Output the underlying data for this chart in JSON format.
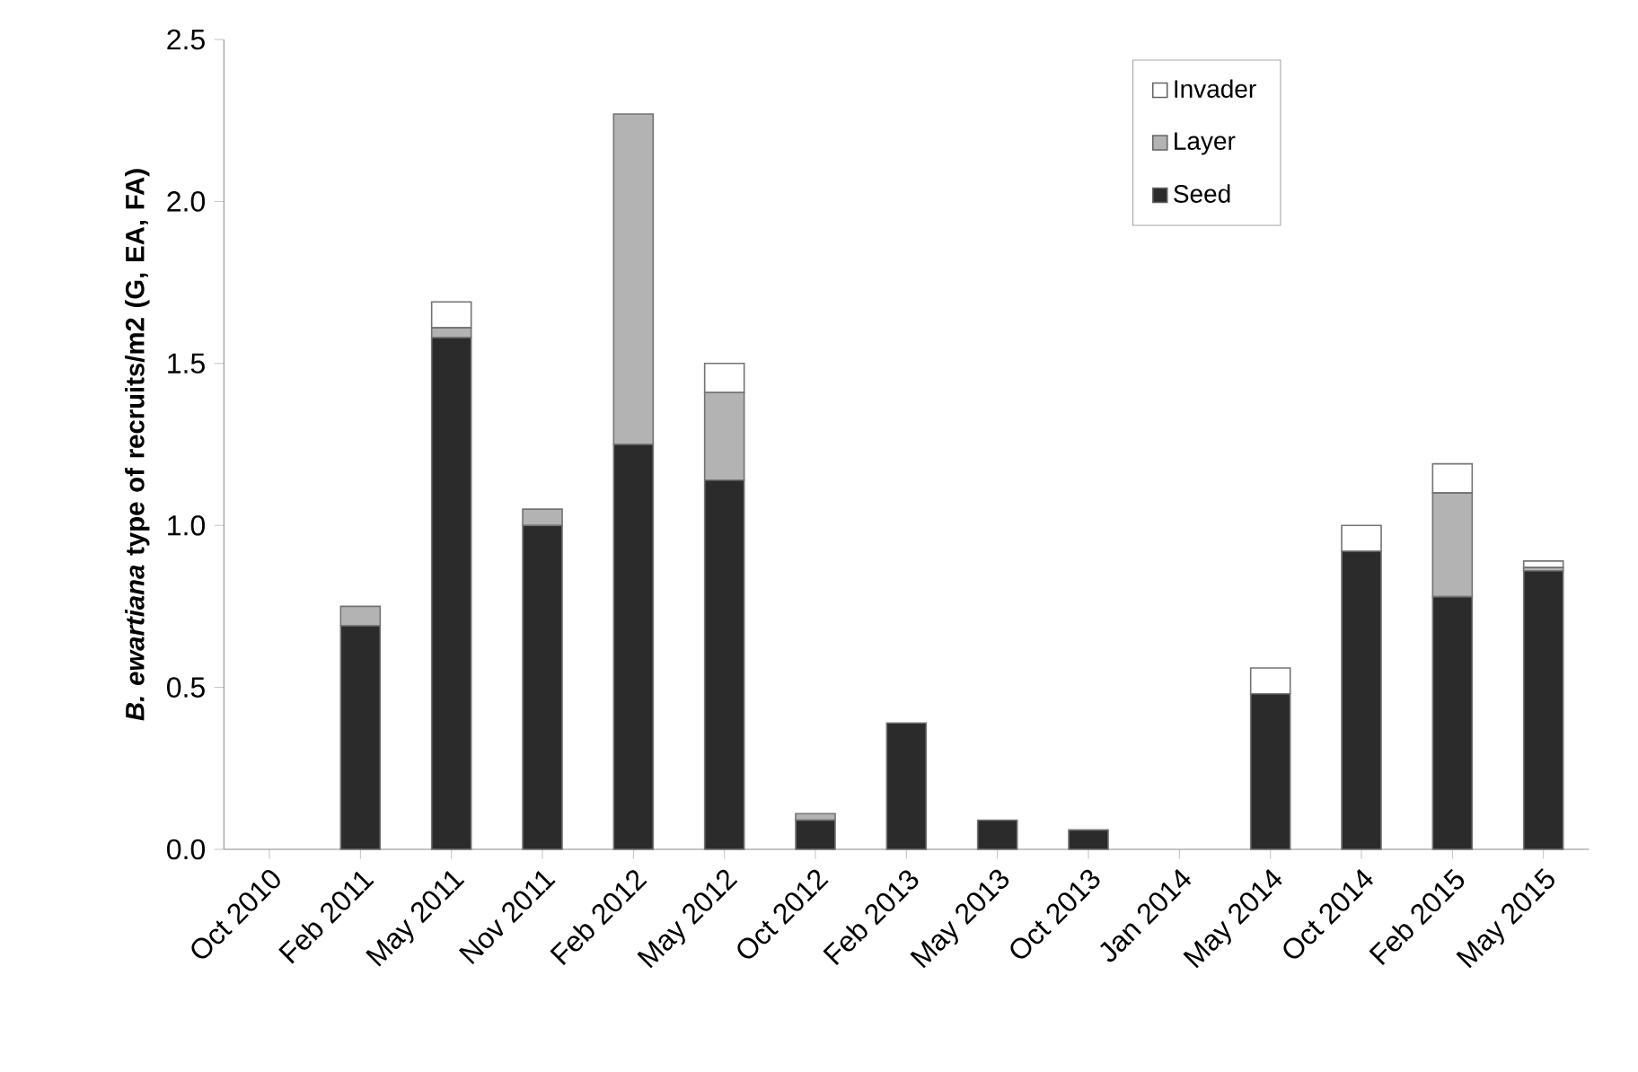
{
  "chart_data": {
    "type": "bar",
    "stacked": true,
    "ylabel": "*B. ewartiana* type of recruits/m2 (G, EA, FA)",
    "categories": [
      "Oct 2010",
      "Feb 2011",
      "May 2011",
      "Nov 2011",
      "Feb 2012",
      "May 2012",
      "Oct 2012",
      "Feb 2013",
      "May 2013",
      "Oct 2013",
      "Jan 2014",
      "May 2014",
      "Oct 2014",
      "Feb 2015",
      "May 2015"
    ],
    "series": [
      {
        "name": "Seed",
        "color": "#2b2b2b",
        "values": [
          null,
          0.69,
          1.58,
          1.0,
          1.25,
          1.14,
          0.09,
          0.39,
          0.09,
          0.06,
          null,
          0.48,
          0.92,
          0.78,
          0.86
        ]
      },
      {
        "name": "Layer",
        "color": "#b3b3b3",
        "values": [
          null,
          0.06,
          0.03,
          0.05,
          1.02,
          0.27,
          0.02,
          null,
          null,
          null,
          null,
          null,
          null,
          0.32,
          0.01
        ]
      },
      {
        "name": "Invader",
        "color": "#ffffff",
        "values": [
          null,
          null,
          0.08,
          null,
          null,
          0.09,
          null,
          null,
          null,
          null,
          null,
          0.08,
          0.08,
          0.09,
          0.02
        ]
      }
    ],
    "ylim": [
      0,
      2.5
    ],
    "yticks": [
      {
        "value": 0,
        "label": "0.0"
      },
      0.5,
      {
        "value": 1,
        "label": "1.0"
      },
      1.5,
      {
        "value": 2,
        "label": "2.0"
      },
      2.5
    ],
    "legend": "top right",
    "grid": false
  }
}
